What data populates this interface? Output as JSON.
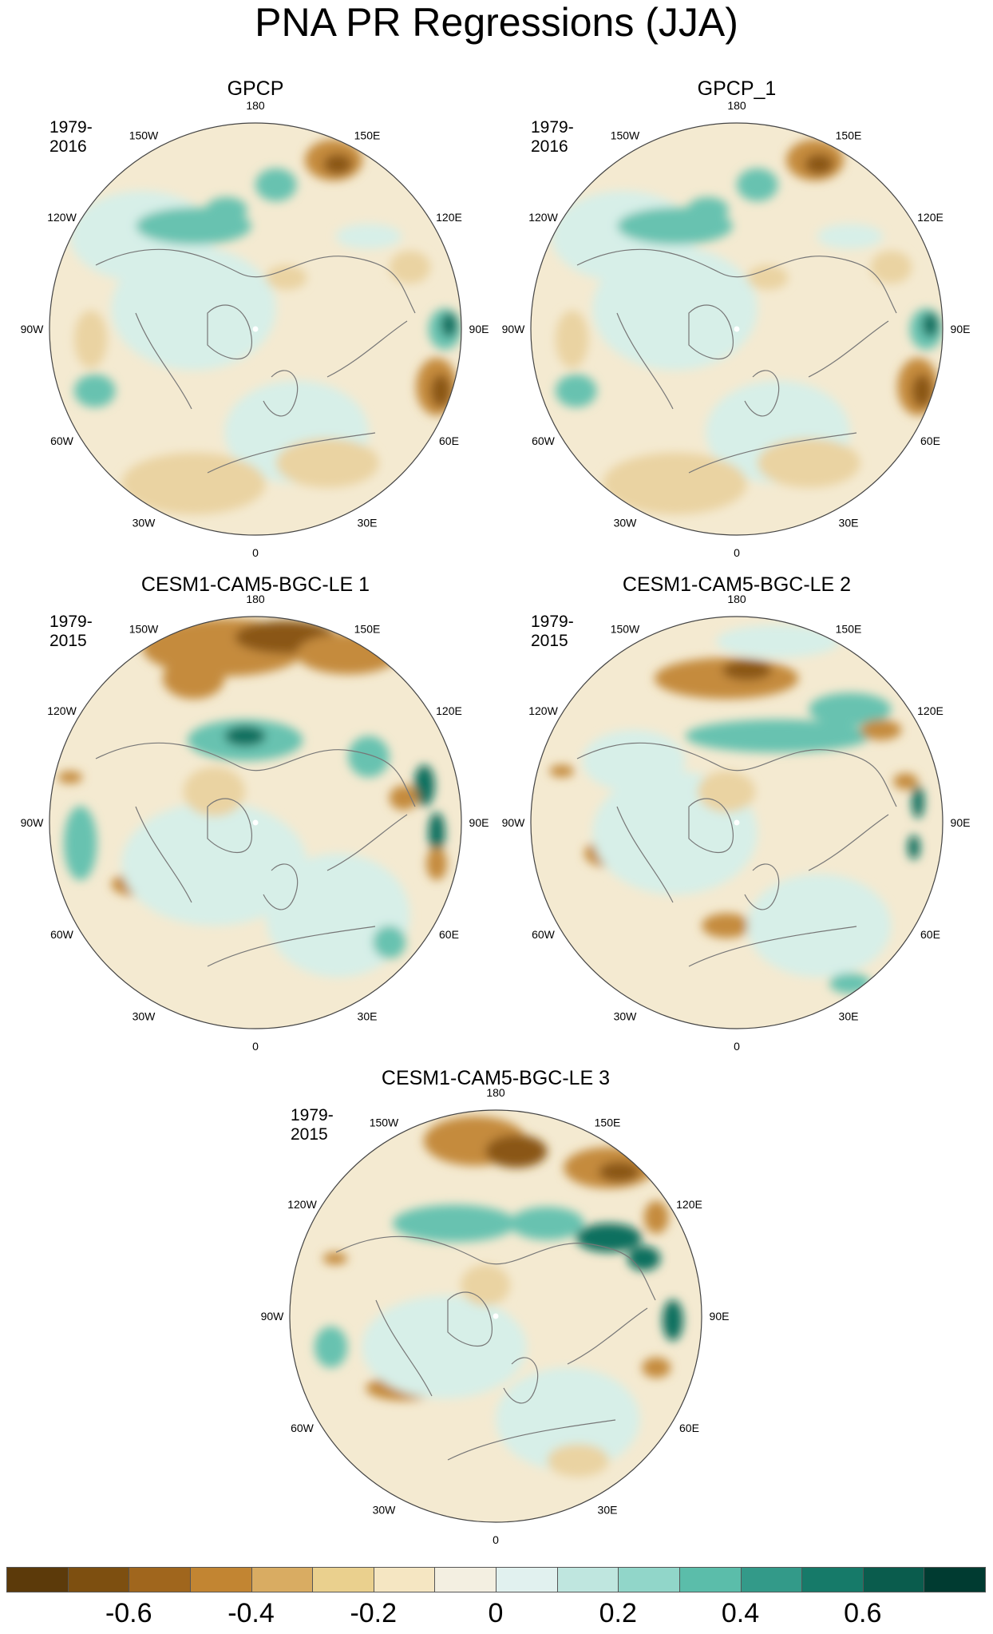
{
  "title": "PNA PR Regressions (JJA)",
  "lon_labels": {
    "l180": "180",
    "l150W": "150W",
    "l150E": "150E",
    "l120W": "120W",
    "l120E": "120E",
    "l90W": "90W",
    "l90E": "90E",
    "l60W": "60W",
    "l60E": "60E",
    "l30W": "30W",
    "l30E": "30E",
    "l0": "0"
  },
  "panels": [
    {
      "title": "GPCP",
      "period": "1979-2016"
    },
    {
      "title": "GPCP_1",
      "period": "1979-2016"
    },
    {
      "title": "CESM1-CAM5-BGC-LE 1",
      "period": "1979-2015"
    },
    {
      "title": "CESM1-CAM5-BGC-LE 2",
      "period": "1979-2015"
    },
    {
      "title": "CESM1-CAM5-BGC-LE 3",
      "period": "1979-2015"
    }
  ],
  "colorbar": {
    "colors": [
      "#5c3a0a",
      "#7d4f10",
      "#a0661d",
      "#c28532",
      "#d9ac62",
      "#ead08e",
      "#f5e6c2",
      "#f3efe1",
      "#e1f1ef",
      "#bfe6df",
      "#91d6c9",
      "#5bbdaa",
      "#339a89",
      "#167a69",
      "#0a5c4d",
      "#003b31"
    ],
    "labels": [
      "-0.6",
      "-0.4",
      "-0.2",
      "0",
      "0.2",
      "0.4",
      "0.6"
    ]
  },
  "palette": {
    "brown_strong": "#8a5714",
    "brown": "#c58b3e",
    "tan": "#ead3a2",
    "cream": "#f4ead1",
    "mint": "#d7efe8",
    "teal": "#67c2b0",
    "teal_strong": "#0e6f5f",
    "coast": "#777777"
  }
}
